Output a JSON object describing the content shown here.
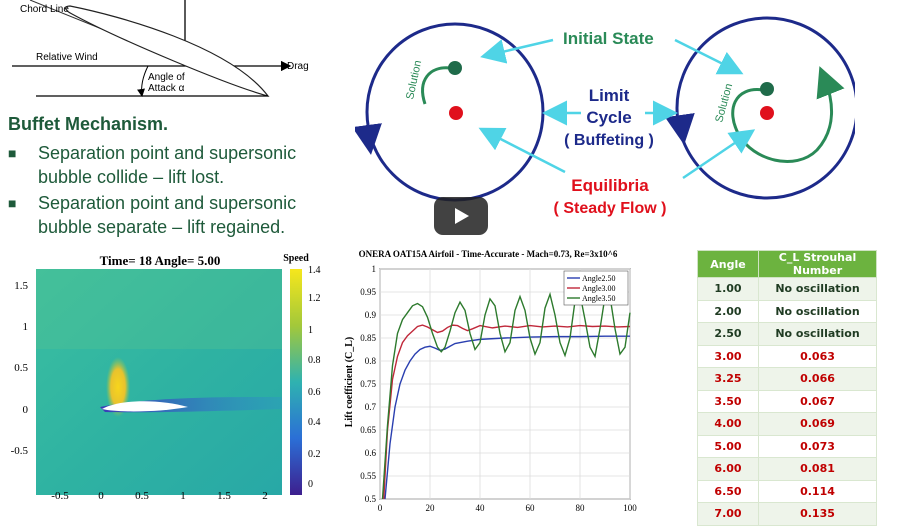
{
  "airfoil": {
    "chord_line": "Chord Line",
    "relative_wind": "Relative Wind",
    "drag": "Drag",
    "angle_line1": "Angle of",
    "angle_line2": "Attack α"
  },
  "bullets": {
    "heading": "Buffet Mechanism.",
    "items": [
      {
        "line1": "Separation point and supersonic",
        "line2": "bubble collide – lift lost."
      },
      {
        "line1": "Separation point and supersonic",
        "line2": "bubble separate – lift regained."
      }
    ]
  },
  "cycle": {
    "initial_state": "Initial State",
    "limit_cycle": [
      "Limit",
      "Cycle",
      "( Buffeting )"
    ],
    "equilibria": [
      "Equilibria",
      "( Steady Flow )"
    ],
    "solution_left": "Solution",
    "solution_right": "Solution",
    "colors": {
      "green": "#2a8a57",
      "red": "#e0101c",
      "navy": "#1d2a8a",
      "cyan": "#4fd4e6"
    }
  },
  "flowfield": {
    "title": "Time= 18 Angle= 5.00",
    "colorbar_label": "Speed",
    "yticks": [
      "1.5",
      "1",
      "0.5",
      "0",
      "-0.5"
    ],
    "xticks": [
      "-0.5",
      "0",
      "0.5",
      "1",
      "1.5",
      "2"
    ],
    "cticks": [
      "1.4",
      "1.2",
      "1",
      "0.8",
      "0.6",
      "0.4",
      "0.2",
      "0"
    ]
  },
  "chart_data": {
    "type": "line",
    "title": "ONERA OAT15A Airfoil - Time-Accurate - Mach=0.73, Re=3x10^6",
    "xlabel": "",
    "ylabel": "Lift coefficient (C_L)",
    "xlim": [
      0,
      100
    ],
    "ylim": [
      0.5,
      1.0
    ],
    "xticks": [
      0,
      20,
      40,
      60,
      80,
      100
    ],
    "yticks": [
      0.5,
      0.55,
      0.6,
      0.65,
      0.7,
      0.75,
      0.8,
      0.85,
      0.9,
      0.95,
      1
    ],
    "grid": true,
    "legend": "top-right",
    "series": [
      {
        "name": "Angle2.50",
        "color": "#2a3fb0",
        "x": [
          2,
          4,
          6,
          8,
          10,
          12,
          14,
          16,
          18,
          20,
          22,
          24,
          26,
          28,
          30,
          35,
          40,
          50,
          60,
          70,
          80,
          90,
          100
        ],
        "y": [
          0.5,
          0.62,
          0.7,
          0.75,
          0.78,
          0.8,
          0.815,
          0.825,
          0.83,
          0.832,
          0.828,
          0.823,
          0.826,
          0.832,
          0.838,
          0.843,
          0.847,
          0.85,
          0.852,
          0.853,
          0.853,
          0.854,
          0.854
        ]
      },
      {
        "name": "Angle3.00",
        "color": "#c0283a",
        "x": [
          1.5,
          3,
          5,
          7,
          9,
          11,
          13,
          15,
          17,
          19,
          21,
          23,
          25,
          27,
          29,
          31,
          33,
          35,
          37,
          40,
          45,
          50,
          55,
          60,
          65,
          70,
          75,
          80,
          85,
          90,
          95,
          100
        ],
        "y": [
          0.5,
          0.65,
          0.76,
          0.81,
          0.84,
          0.855,
          0.865,
          0.875,
          0.878,
          0.874,
          0.868,
          0.862,
          0.865,
          0.873,
          0.878,
          0.877,
          0.871,
          0.866,
          0.87,
          0.877,
          0.872,
          0.876,
          0.873,
          0.877,
          0.874,
          0.876,
          0.874,
          0.877,
          0.875,
          0.876,
          0.874,
          0.875
        ]
      },
      {
        "name": "Angle3.50",
        "color": "#2d7a2d",
        "x": [
          1,
          3,
          5,
          7,
          9,
          11,
          13,
          15,
          17,
          19,
          21,
          23,
          24.5,
          26,
          28,
          30,
          32,
          34,
          36,
          38,
          40,
          42,
          44,
          46,
          48,
          50,
          52,
          54,
          56,
          58,
          60,
          62,
          64,
          66,
          68,
          70,
          72,
          74,
          76,
          78,
          80,
          82,
          84,
          86,
          88,
          90,
          92,
          94,
          96,
          98,
          100
        ],
        "y": [
          0.5,
          0.66,
          0.79,
          0.86,
          0.89,
          0.905,
          0.92,
          0.925,
          0.918,
          0.895,
          0.86,
          0.83,
          0.82,
          0.83,
          0.865,
          0.905,
          0.928,
          0.91,
          0.86,
          0.825,
          0.84,
          0.9,
          0.935,
          0.92,
          0.86,
          0.82,
          0.84,
          0.91,
          0.94,
          0.91,
          0.85,
          0.815,
          0.84,
          0.915,
          0.945,
          0.9,
          0.84,
          0.812,
          0.85,
          0.93,
          0.945,
          0.89,
          0.83,
          0.81,
          0.87,
          0.94,
          0.94,
          0.87,
          0.815,
          0.83,
          0.905
        ]
      }
    ]
  },
  "table": {
    "headers": [
      "Angle",
      "C_L Strouhal Number"
    ],
    "rows": [
      {
        "angle": "1.00",
        "value": "No oscillation"
      },
      {
        "angle": "2.00",
        "value": "No oscillation"
      },
      {
        "angle": "2.50",
        "value": "No oscillation"
      },
      {
        "angle": "3.00",
        "value": "0.063"
      },
      {
        "angle": "3.25",
        "value": "0.066"
      },
      {
        "angle": "3.50",
        "value": "0.067"
      },
      {
        "angle": "4.00",
        "value": "0.069"
      },
      {
        "angle": "5.00",
        "value": "0.073"
      },
      {
        "angle": "6.00",
        "value": "0.081"
      },
      {
        "angle": "6.50",
        "value": "0.114"
      },
      {
        "angle": "7.00",
        "value": "0.135"
      }
    ],
    "colors": {
      "header": "#6cb33f",
      "green_text": "#1f3b22",
      "red_text": "#c00000"
    }
  },
  "player": {
    "play_label": "Play"
  }
}
